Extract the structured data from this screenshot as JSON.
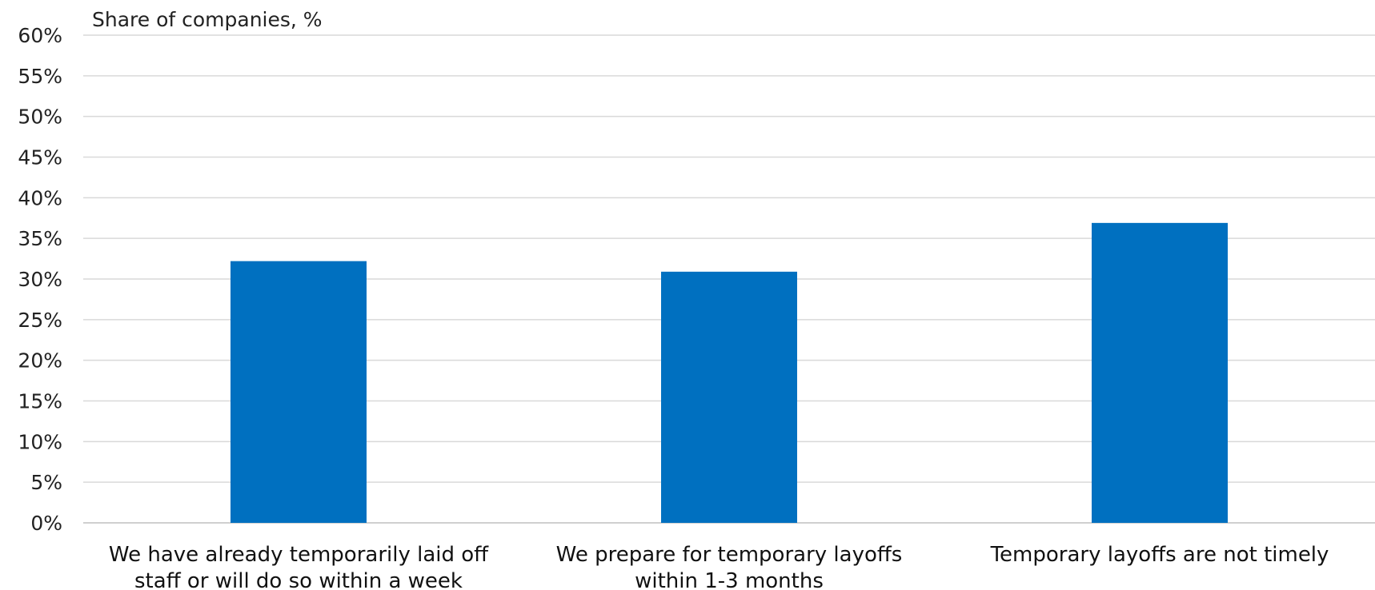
{
  "chart_data": {
    "type": "bar",
    "unit_label": "Share of companies, %",
    "categories": [
      [
        "We have already temporarily laid off",
        "staff or will do so within a week"
      ],
      [
        "We prepare for temporary layoffs",
        "within 1-3 months"
      ],
      [
        "Temporary layoffs are not timely"
      ]
    ],
    "values": [
      32.2,
      30.9,
      36.9
    ],
    "ylim": [
      0,
      60
    ],
    "ytick_step": 5,
    "ytick_format": "%",
    "grid": true,
    "bar_color": "#0070C0",
    "legend": "none"
  }
}
